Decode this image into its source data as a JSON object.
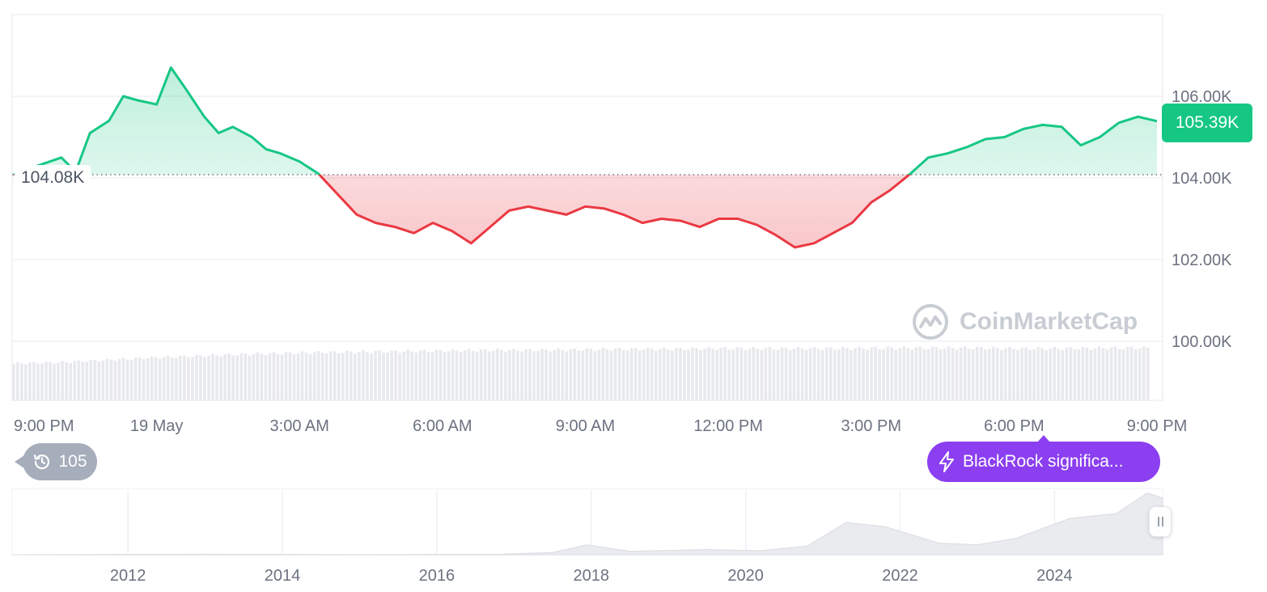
{
  "chart_data": {
    "type": "area",
    "y_axis": {
      "tick_labels": [
        "100.00K",
        "102.00K",
        "104.00K",
        "106.00K"
      ],
      "tick_values": [
        100000,
        102000,
        104000,
        106000
      ],
      "range": [
        99000,
        108000
      ]
    },
    "x_axis": {
      "tick_labels": [
        "9:00 PM",
        "19 May",
        "3:00 AM",
        "6:00 AM",
        "9:00 AM",
        "12:00 PM",
        "3:00 PM",
        "6:00 PM",
        "9:00 PM"
      ],
      "tick_hours": [
        0,
        3,
        6,
        9,
        12,
        15,
        18,
        21,
        24
      ],
      "range_hours": [
        0,
        24
      ]
    },
    "baseline": {
      "value": 104080,
      "label": "104.08K"
    },
    "last_price": {
      "value": 105390,
      "label": "105.39K"
    },
    "series": [
      {
        "x_hours": [
          0,
          0.5,
          1.0,
          1.3,
          1.6,
          2.0,
          2.3,
          2.6,
          3.0,
          3.3,
          3.6,
          4.0,
          4.3,
          4.6,
          5.0,
          5.3,
          5.6,
          6.0,
          6.4,
          6.8,
          7.2,
          7.6,
          8.0,
          8.4,
          8.8,
          9.2,
          9.6,
          10.0,
          10.4,
          10.8,
          11.2,
          11.6,
          12.0,
          12.4,
          12.8,
          13.2,
          13.6,
          14.0,
          14.4,
          14.8,
          15.2,
          15.6,
          16.0,
          16.4,
          16.8,
          17.2,
          17.6,
          18.0,
          18.4,
          18.8,
          19.2,
          19.6,
          20.0,
          20.4,
          20.8,
          21.2,
          21.6,
          22.0,
          22.4,
          22.8,
          23.2,
          23.6,
          24.0
        ],
        "values": [
          104080,
          104300,
          104500,
          104150,
          105100,
          105400,
          106000,
          105900,
          105800,
          106700,
          106200,
          105500,
          105100,
          105250,
          105000,
          104700,
          104600,
          104400,
          104100,
          103600,
          103100,
          102900,
          102800,
          102650,
          102900,
          102700,
          102400,
          102800,
          103200,
          103300,
          103200,
          103100,
          103300,
          103250,
          103100,
          102900,
          103000,
          102950,
          102800,
          103000,
          103000,
          102850,
          102600,
          102300,
          102400,
          102650,
          102900,
          103400,
          103700,
          104080,
          104500,
          104600,
          104750,
          104950,
          105000,
          105200,
          105300,
          105250,
          104800,
          105000,
          105350,
          105500,
          105390
        ]
      }
    ],
    "volume": {
      "type": "bar",
      "relative_values": [
        0.66,
        0.68,
        0.72,
        0.76,
        0.79,
        0.82,
        0.84,
        0.86,
        0.87,
        0.88,
        0.89,
        0.9,
        0.9,
        0.91,
        0.92,
        0.92,
        0.93,
        0.93,
        0.93,
        0.93,
        0.94,
        0.94,
        0.94,
        0.93,
        0.93,
        0.94,
        0.94
      ]
    },
    "navigator": {
      "type": "area",
      "tick_labels": [
        "2012",
        "2014",
        "2016",
        "2018",
        "2020",
        "2022",
        "2024"
      ],
      "tick_years": [
        2012,
        2014,
        2016,
        2018,
        2020,
        2022,
        2024
      ],
      "range_years": [
        2010.5,
        2025.4
      ],
      "x_years": [
        2010.5,
        2013,
        2015,
        2016.8,
        2017.5,
        2017.95,
        2018.5,
        2019.5,
        2020.2,
        2020.8,
        2021.3,
        2021.8,
        2022.5,
        2023.0,
        2023.5,
        2024.2,
        2024.8,
        2025.2,
        2025.4
      ],
      "values": [
        0,
        1000,
        300,
        800,
        4000,
        17000,
        6000,
        9000,
        7000,
        15000,
        55000,
        48000,
        20000,
        17000,
        28000,
        62000,
        70000,
        105000,
        97000
      ],
      "range": [
        0,
        110000
      ]
    }
  },
  "history_badge": {
    "icon": "history-icon",
    "count": "105"
  },
  "news_badge": {
    "icon": "lightning-icon",
    "text": "BlackRock significa..."
  },
  "watermark": {
    "text": "CoinMarketCap"
  },
  "colors": {
    "up": "#16c784",
    "down": "#ea3943",
    "up_fill": "#cdf3e2",
    "down_fill": "#fbd3d5",
    "grid": "#eef0f3",
    "volume": "#e7e9ed",
    "news": "#8b3ff0",
    "navigator_fill": "#e9ebee"
  }
}
